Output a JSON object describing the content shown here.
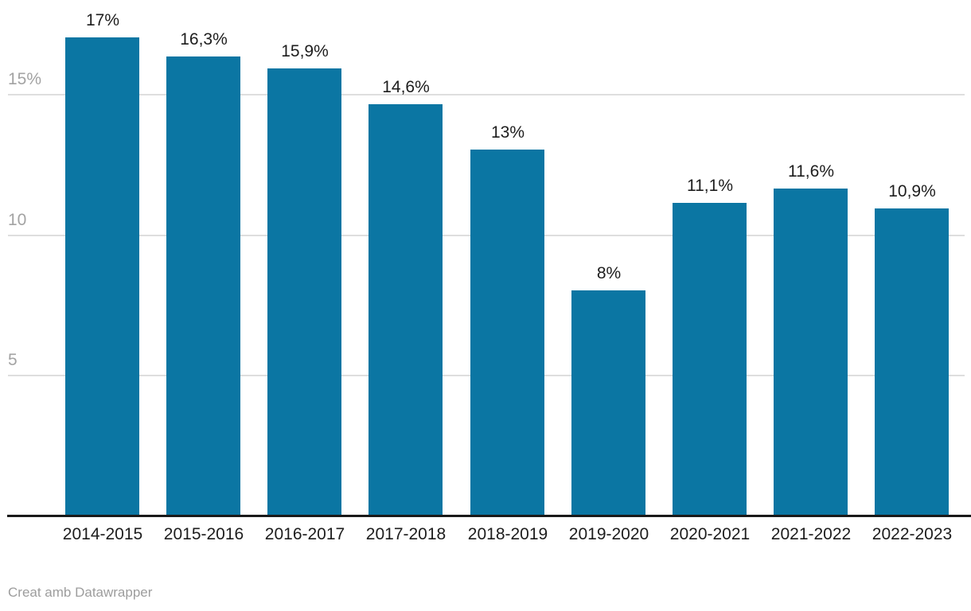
{
  "chart_data": {
    "type": "bar",
    "categories": [
      "2014-2015",
      "2015-2016",
      "2016-2017",
      "2017-2018",
      "2018-2019",
      "2019-2020",
      "2020-2021",
      "2021-2022",
      "2022-2023"
    ],
    "values": [
      17,
      16.3,
      15.9,
      14.6,
      13,
      8,
      11.1,
      11.6,
      10.9
    ],
    "value_labels": [
      "17%",
      "16,3%",
      "15,9%",
      "14,6%",
      "13%",
      "8%",
      "11,1%",
      "11,6%",
      "10,9%"
    ],
    "title": "",
    "xlabel": "",
    "ylabel": "",
    "ylim": [
      0,
      17.5
    ],
    "yticks": [
      {
        "value": 5,
        "label": "5"
      },
      {
        "value": 10,
        "label": "10"
      },
      {
        "value": 15,
        "label": "15%"
      }
    ],
    "grid": true,
    "legend": "none",
    "bar_color": "#0b76a3",
    "gridline_color": "#dedede",
    "axis_color": "#1a1a1a",
    "ytick_color": "#a3a3a3",
    "label_color": "#1d1d1d"
  },
  "footer": {
    "attribution": "Creat amb Datawrapper"
  }
}
